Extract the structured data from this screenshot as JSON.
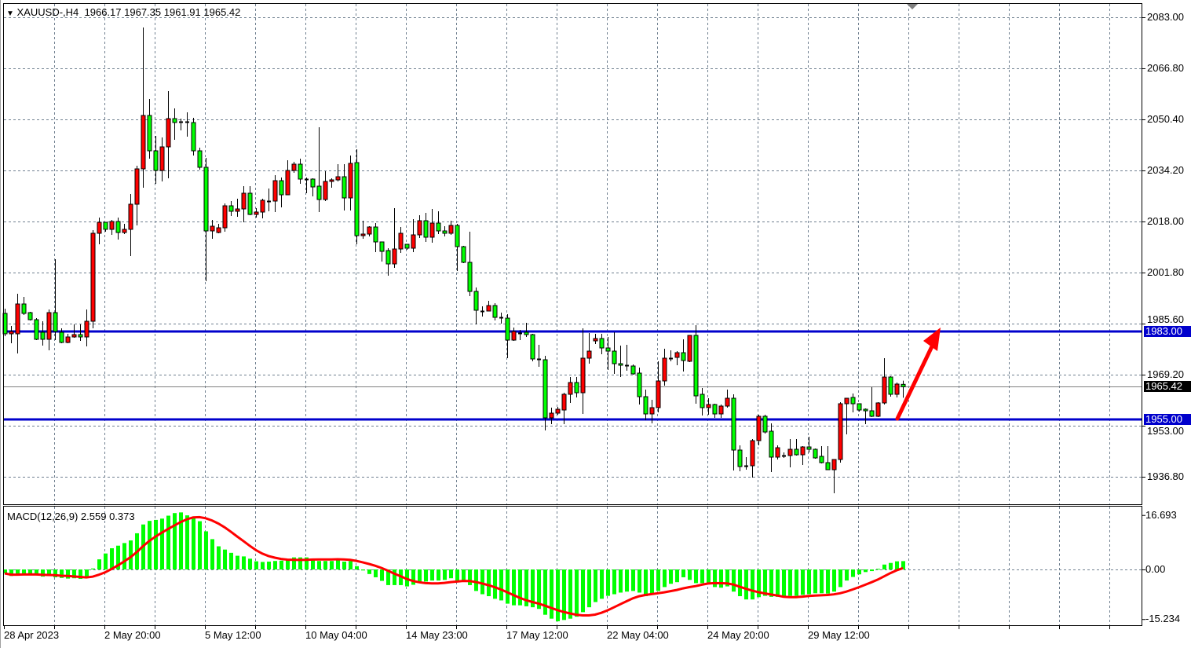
{
  "header": {
    "symbol": "XAUUSD-,H4",
    "open": "1966.17",
    "high": "1967.35",
    "low": "1961.91",
    "close": "1965.42"
  },
  "colors": {
    "bull": "#ff0000",
    "bear": "#00ff00",
    "level_line": "#0000cc",
    "arrow": "#ff0000",
    "macd_hist": "#00ff00",
    "macd_signal": "#ff0000",
    "grid": "#708090"
  },
  "icons": {
    "header_toggle": "triangle-down-icon",
    "shift_marker": "triangle-down-icon",
    "arrow": "arrow-up-right-icon"
  },
  "chart_data": [
    {
      "type": "candlestick",
      "title": "XAUUSD-,H4",
      "timeframe": "H4",
      "ylim": [
        1929.5,
        2087.5
      ],
      "grid": true,
      "y_ticks": [
        "2083.00",
        "2066.80",
        "2050.40",
        "2034.20",
        "2018.00",
        "2001.80",
        "1985.60",
        "1969.20",
        "1953.00",
        "1936.80"
      ],
      "x_ticks": [
        "28 Apr 2023",
        "2 May 20:00",
        "5 May 12:00",
        "10 May 04:00",
        "14 May 23:00",
        "17 May 12:00",
        "22 May 04:00",
        "24 May 20:00",
        "29 May 12:00"
      ],
      "ohlc_fields": [
        "open",
        "high",
        "low",
        "close"
      ],
      "ohlc": [
        [
          1988.75,
          1990.25,
          1981.5,
          1982.25
        ],
        [
          1982.25,
          1984.75,
          1979.25,
          1983
        ],
        [
          1982.25,
          1995,
          1976,
          1991.75
        ],
        [
          1991.75,
          1994,
          1988.25,
          1988.75
        ],
        [
          1989,
          1989.25,
          1986.5,
          1986.75
        ],
        [
          1986.75,
          1987.25,
          1980.25,
          1980.5
        ],
        [
          1982.75,
          1986.25,
          1978.5,
          1980.5
        ],
        [
          1980.5,
          1990,
          1977,
          1989
        ],
        [
          1989,
          2006,
          1980.25,
          1983
        ],
        [
          1982.75,
          1984,
          1979.25,
          1979.5
        ],
        [
          1979.5,
          1982.25,
          1979.25,
          1981.25
        ],
        [
          1981.25,
          1985.25,
          1981,
          1982
        ],
        [
          1982,
          1985.25,
          1980,
          1981.25
        ],
        [
          1981.25,
          1990,
          1978.25,
          1986.25
        ],
        [
          1986.25,
          2015.25,
          1984,
          2014.25
        ],
        [
          2014.25,
          2019.25,
          2010.75,
          2017.75
        ],
        [
          2017.75,
          2017.75,
          2014.75,
          2015.5
        ],
        [
          2015.5,
          2018.5,
          2013.75,
          2018
        ],
        [
          2018,
          2019.25,
          2012.25,
          2014.5
        ],
        [
          2014.5,
          2017.25,
          2014,
          2015.5
        ],
        [
          2015.5,
          2026.75,
          2007,
          2023.5
        ],
        [
          2023.5,
          2035.75,
          2016.75,
          2034.75
        ],
        [
          2034.75,
          2079.75,
          2028.75,
          2051.75
        ],
        [
          2051.75,
          2057,
          2038,
          2040.5
        ],
        [
          2040.5,
          2045.25,
          2030,
          2034.25
        ],
        [
          2034.25,
          2044.75,
          2030.75,
          2041.75
        ],
        [
          2041.75,
          2059.5,
          2031.75,
          2050.75
        ],
        [
          2050.75,
          2054,
          2044,
          2049.5
        ],
        [
          2049.75,
          2050.75,
          2047,
          2049.5
        ],
        [
          2049.5,
          2052.75,
          2045,
          2049.75
        ],
        [
          2049.5,
          2051,
          2039,
          2040.5
        ],
        [
          2040.5,
          2041.5,
          2034.5,
          2035.25
        ],
        [
          2035.25,
          2038.25,
          1999,
          2015
        ],
        [
          2015,
          2018.5,
          2012.5,
          2016.5
        ],
        [
          2014.5,
          2017.25,
          2014.25,
          2016
        ],
        [
          2016,
          2023.75,
          2014.75,
          2023
        ],
        [
          2023,
          2024.5,
          2019.75,
          2021.25
        ],
        [
          2021.25,
          2025.25,
          2019.5,
          2022
        ],
        [
          2022,
          2029.25,
          2017.75,
          2027
        ],
        [
          2027,
          2029.25,
          2020,
          2020.25
        ],
        [
          2020.25,
          2022.25,
          2019.25,
          2021
        ],
        [
          2021,
          2025.25,
          2019,
          2024.75
        ],
        [
          2024.5,
          2028.5,
          2021.25,
          2024.5
        ],
        [
          2024.5,
          2032.75,
          2021,
          2031
        ],
        [
          2031,
          2032,
          2022.5,
          2026.5
        ],
        [
          2026.5,
          2037.5,
          2026.5,
          2034.25
        ],
        [
          2034.25,
          2037,
          2033.5,
          2036.25
        ],
        [
          2036.25,
          2038,
          2030,
          2031.5
        ],
        [
          2031.5,
          2032,
          2027,
          2031.5
        ],
        [
          2031.5,
          2031.75,
          2026,
          2029
        ],
        [
          2029.25,
          2048,
          2021,
          2025
        ],
        [
          2025,
          2034,
          2024.5,
          2030.75
        ],
        [
          2030.75,
          2031.75,
          2028.75,
          2031.25
        ],
        [
          2031.25,
          2036.25,
          2030.75,
          2032.25
        ],
        [
          2032.25,
          2036.25,
          2021.5,
          2025.5
        ],
        [
          2025.5,
          2039,
          2021.5,
          2036.5
        ],
        [
          2036.75,
          2041,
          2010.75,
          2013.5
        ],
        [
          2013.5,
          2018.25,
          2012.5,
          2014
        ],
        [
          2014,
          2016.5,
          2013.25,
          2016.25
        ],
        [
          2016.25,
          2017.5,
          2008.25,
          2011.5
        ],
        [
          2011.5,
          2011.5,
          2005.25,
          2008.5
        ],
        [
          2008.75,
          2009.5,
          2000.75,
          2004.5
        ],
        [
          2004.5,
          2022.25,
          2003.25,
          2009.25
        ],
        [
          2009.25,
          2016.25,
          2008,
          2014.25
        ],
        [
          2010.75,
          2010.75,
          2009,
          2009.5
        ],
        [
          2009.5,
          2018.75,
          2008.25,
          2013.75
        ],
        [
          2013.75,
          2020,
          2012.75,
          2018.25
        ],
        [
          2018.25,
          2020.75,
          2011.5,
          2013
        ],
        [
          2013,
          2022,
          2011.25,
          2017.5
        ],
        [
          2017.5,
          2021.25,
          2014,
          2015
        ],
        [
          2015,
          2016.5,
          2013.25,
          2014.25
        ],
        [
          2014.25,
          2018.25,
          2013.75,
          2016.75
        ],
        [
          2016.75,
          2017.25,
          2002.25,
          2010
        ],
        [
          2010,
          2010.25,
          2004.75,
          2005
        ],
        [
          2005,
          2014.75,
          1994.25,
          1995.75
        ],
        [
          1995.75,
          1997,
          1985.25,
          1989.75
        ],
        [
          1989.5,
          1991,
          1987.75,
          1989.5
        ],
        [
          1989.5,
          1992.75,
          1989.5,
          1991.25
        ],
        [
          1991.25,
          1992,
          1986.5,
          1987.5
        ],
        [
          1987.5,
          1989,
          1985.5,
          1987.25
        ],
        [
          1987.25,
          1988.5,
          1974.5,
          1980.25
        ],
        [
          1980.25,
          1984.25,
          1980,
          1983
        ],
        [
          1982.5,
          1983.5,
          1980.25,
          1982.5
        ],
        [
          1982.75,
          1985.75,
          1981.25,
          1982
        ],
        [
          1982,
          1982.25,
          1973.5,
          1974.25
        ],
        [
          1974.25,
          1978.75,
          1971.75,
          1974
        ],
        [
          1974,
          1975.25,
          1951.5,
          1955.5
        ],
        [
          1955.5,
          1958.75,
          1953.5,
          1957
        ],
        [
          1957,
          1959,
          1956.5,
          1958.25
        ],
        [
          1958,
          1963.5,
          1953.5,
          1963
        ],
        [
          1963,
          1968.5,
          1960.25,
          1966.75
        ],
        [
          1966.75,
          1968.5,
          1962,
          1963.5
        ],
        [
          1963.5,
          1984,
          1956.75,
          1974.5
        ],
        [
          1974.5,
          1982.5,
          1972.75,
          1976.75
        ],
        [
          1980,
          1982.25,
          1979,
          1980.75
        ],
        [
          1980.75,
          1982.25,
          1975.75,
          1977.75
        ],
        [
          1977.75,
          1981.25,
          1970.75,
          1976.75
        ],
        [
          1976.75,
          1982.75,
          1969.5,
          1972.75
        ],
        [
          1972.75,
          1978.5,
          1968.5,
          1972.25
        ],
        [
          1972.25,
          1978.75,
          1970.5,
          1972
        ],
        [
          1972,
          1972.5,
          1969.25,
          1969.5
        ],
        [
          1969.75,
          1971.5,
          1959.75,
          1962.25
        ],
        [
          1962.25,
          1964.5,
          1954.75,
          1956.75
        ],
        [
          1956.75,
          1961.25,
          1953.75,
          1958.75
        ],
        [
          1958.75,
          1973.5,
          1957.25,
          1967.25
        ],
        [
          1967.25,
          1977.5,
          1965.75,
          1974.5
        ],
        [
          1974.5,
          1977,
          1973.5,
          1974.5
        ],
        [
          1974.75,
          1976.75,
          1972.25,
          1976.25
        ],
        [
          1976.25,
          1980.5,
          1970.25,
          1973.75
        ],
        [
          1973.5,
          1981.75,
          1973.25,
          1981.75
        ],
        [
          1981.75,
          1985,
          1960,
          1962.5
        ],
        [
          1963,
          1965,
          1956.25,
          1958.75
        ],
        [
          1958.75,
          1961.75,
          1956.5,
          1959.75
        ],
        [
          1959.75,
          1960,
          1955.5,
          1956.75
        ],
        [
          1956.75,
          1959.75,
          1955.5,
          1959.25
        ],
        [
          1959.25,
          1964.5,
          1958.75,
          1961.75
        ],
        [
          1961.75,
          1963,
          1938.75,
          1945.25
        ],
        [
          1945.25,
          1946.75,
          1938.5,
          1940
        ],
        [
          1940.25,
          1943,
          1939,
          1940.25
        ],
        [
          1940.25,
          1948.75,
          1936.5,
          1948.25
        ],
        [
          1948.25,
          1956.5,
          1946.75,
          1956
        ],
        [
          1956,
          1956.5,
          1950.5,
          1951
        ],
        [
          1951.25,
          1953.75,
          1938.25,
          1943
        ],
        [
          1943,
          1946.75,
          1942.25,
          1946
        ],
        [
          1943.5,
          1944.5,
          1942.75,
          1943.5
        ],
        [
          1943.5,
          1948.75,
          1939.75,
          1945.5
        ],
        [
          1945.5,
          1948.75,
          1943.5,
          1943.75
        ],
        [
          1943.75,
          1946.5,
          1940.5,
          1946.25
        ],
        [
          1946.25,
          1949.5,
          1944.5,
          1945.5
        ],
        [
          1945.5,
          1945.75,
          1942.5,
          1942.75
        ],
        [
          1943.25,
          1946.5,
          1941,
          1941.25
        ],
        [
          1941.25,
          1946.5,
          1939,
          1939
        ],
        [
          1939,
          1942.25,
          1931.5,
          1942.25
        ],
        [
          1942.25,
          1960.5,
          1941.25,
          1960
        ],
        [
          1960,
          1961.75,
          1950.25,
          1961.75
        ],
        [
          1962,
          1963.25,
          1957.25,
          1960
        ],
        [
          1960,
          1960,
          1957.5,
          1958
        ],
        [
          1958.25,
          1958.5,
          1953.5,
          1957.75
        ],
        [
          1957.75,
          1965.25,
          1955.75,
          1956
        ],
        [
          1956,
          1960.5,
          1955.75,
          1960.25
        ],
        [
          1960.25,
          1974.5,
          1959.75,
          1968.5
        ],
        [
          1968.5,
          1968.75,
          1962.25,
          1963
        ],
        [
          1963,
          1966.75,
          1962,
          1966.25
        ],
        [
          1966.17,
          1967.35,
          1961.91,
          1965.42
        ]
      ],
      "horizontal_levels": [
        {
          "price": 1983.0,
          "label": "1983.00"
        },
        {
          "price": 1955.0,
          "label": "1955.00"
        }
      ],
      "current_price": {
        "price": 1965.42,
        "label": "1965.42"
      },
      "annotation_arrow": {
        "from_price": 1955.0,
        "to_price": 1983.0,
        "direction": "up"
      }
    },
    {
      "type": "bar+line",
      "title": "MACD(12,26,9) 2.559 0.373",
      "indicator": "MACD(12,26,9)",
      "macd_value": "2.559",
      "signal_value": "0.373",
      "ylim": [
        -15.234,
        16.693
      ],
      "y_ticks": [
        "16.693",
        "0.00",
        "-15.234"
      ],
      "histogram": [
        -1.2,
        -2.0,
        -1.6,
        -1.4,
        -1.3,
        -1.8,
        -2.2,
        -2.0,
        -2.4,
        -2.6,
        -2.8,
        -2.7,
        -2.9,
        -2.6,
        0.3,
        3.1,
        4.9,
        6.5,
        7.3,
        8.1,
        8.9,
        11.1,
        13.8,
        14.9,
        15.2,
        15.6,
        16.5,
        17.3,
        17.5,
        16.6,
        16.1,
        14.8,
        11.7,
        9.3,
        7.1,
        6.1,
        5.1,
        4.2,
        4.0,
        3.3,
        2.5,
        2.3,
        2.4,
        2.6,
        2.7,
        3.1,
        3.7,
        3.7,
        3.7,
        3.1,
        2.6,
        2.6,
        2.6,
        3.1,
        2.4,
        2.6,
        1.0,
        -0.3,
        -1.4,
        -2.4,
        -3.5,
        -4.8,
        -4.8,
        -4.8,
        -5.2,
        -4.7,
        -3.8,
        -3.7,
        -3.4,
        -3.4,
        -3.2,
        -2.7,
        -3.4,
        -3.4,
        -4.8,
        -6.6,
        -7.6,
        -8.2,
        -9.0,
        -9.5,
        -10.5,
        -11.0,
        -11.0,
        -11.3,
        -11.6,
        -12.1,
        -13.9,
        -15.1,
        -15.9,
        -15.5,
        -15.1,
        -14.5,
        -13.1,
        -11.6,
        -10.0,
        -9.0,
        -8.1,
        -7.6,
        -7.1,
        -6.8,
        -6.6,
        -7.1,
        -8.2,
        -7.7,
        -6.6,
        -5.4,
        -4.4,
        -3.9,
        -2.4,
        -3.2,
        -4.2,
        -4.2,
        -4.6,
        -5.4,
        -5.6,
        -5.2,
        -6.8,
        -8.2,
        -9.2,
        -9.2,
        -8.5,
        -8.1,
        -8.4,
        -8.4,
        -8.4,
        -8.1,
        -8.1,
        -7.8,
        -7.6,
        -7.3,
        -7.3,
        -7.4,
        -6.8,
        -5.4,
        -3.4,
        -2.3,
        -1.5,
        -0.8,
        -0.5,
        0.2,
        1.5,
        2.0,
        2.5,
        2.559
      ],
      "signal_period": 9
    }
  ]
}
